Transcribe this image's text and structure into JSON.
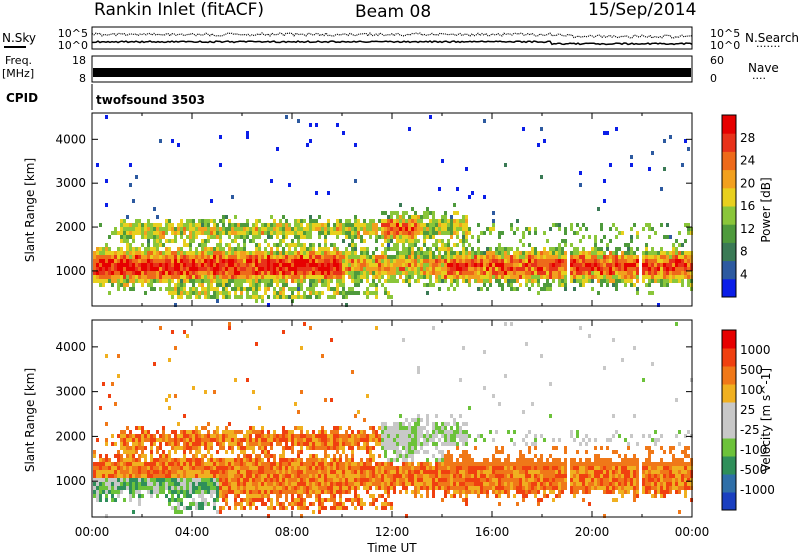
{
  "header": {
    "station": "Rankin Inlet (fitACF)",
    "beam": "Beam 08",
    "date": "15/Sep/2014"
  },
  "top_panels": {
    "nsky_label": "N.Sky",
    "nsearch_label": "N.Search",
    "noise_ticks": [
      "10^5",
      "10^0"
    ],
    "freq_label": "Freq.",
    "freq_unit": "[MHz]",
    "freq_ticks": [
      "18",
      "8"
    ],
    "nave_label": "Nave",
    "nave_ticks": [
      "60",
      "0"
    ],
    "cpid_label": "CPID",
    "cpid_value": "twofsound 3503",
    "legend_dots": "·······",
    "nave_dots": "····"
  },
  "chart_data": [
    {
      "type": "heatmap",
      "name": "Power",
      "ylabel": "Slant Range [km]",
      "xlabel": "",
      "y_ticks": [
        "1000",
        "2000",
        "3000",
        "4000"
      ],
      "ylim": [
        200,
        4600
      ],
      "xlim": [
        0,
        24
      ],
      "colorbar": {
        "label": "Power [dB]",
        "ticks": [
          "4",
          "8",
          "12",
          "16",
          "20",
          "24",
          "28"
        ],
        "colors": [
          "#0b1ee8",
          "#2d5aa0",
          "#3a7a55",
          "#4e9a3c",
          "#8ac63a",
          "#e8d01e",
          "#f2a01e",
          "#ee6a1a",
          "#e8321a",
          "#e60000"
        ]
      }
    },
    {
      "type": "heatmap",
      "name": "Velocity",
      "ylabel": "Slant Range [km]",
      "xlabel": "Time UT",
      "y_ticks": [
        "1000",
        "2000",
        "3000",
        "4000"
      ],
      "ylim": [
        200,
        4600
      ],
      "xlim": [
        0,
        24
      ],
      "colorbar": {
        "label": "Velocity [m s^-1]",
        "ticks": [
          "1000",
          "500",
          "100",
          "25",
          "-25",
          "-100",
          "-500",
          "-1000"
        ],
        "colors": [
          "#1a3fc0",
          "#2f6fa8",
          "#2f8f5a",
          "#6cc23a",
          "#c8c8c8",
          "#c8c8c8",
          "#f0b020",
          "#f07818",
          "#f04010",
          "#e60000"
        ]
      }
    }
  ],
  "x_ticks": [
    "00:00",
    "04:00",
    "08:00",
    "12:00",
    "16:00",
    "20:00",
    "00:00"
  ]
}
